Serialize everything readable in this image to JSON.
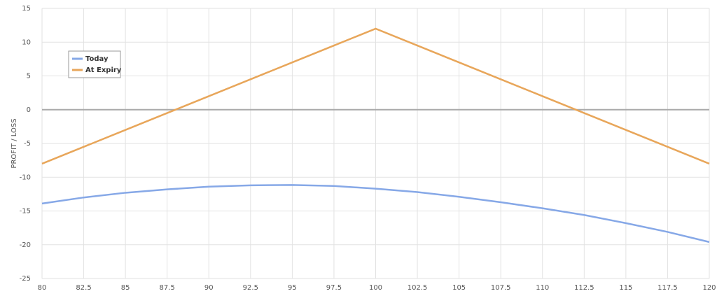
{
  "chart_data": {
    "type": "line",
    "y_label": "PROFIT / LOSS",
    "x": [
      80,
      82.5,
      85,
      87.5,
      90,
      92.5,
      95,
      97.5,
      100,
      102.5,
      105,
      107.5,
      110,
      112.5,
      115,
      117.5,
      120
    ],
    "series": [
      {
        "name": "Today",
        "color": "#86a8e7",
        "values": [
          -13.9,
          -13.0,
          -12.3,
          -11.8,
          -11.4,
          -11.2,
          -11.15,
          -11.3,
          -11.7,
          -12.2,
          -12.9,
          -13.7,
          -14.6,
          -15.6,
          -16.8,
          -18.1,
          -19.6
        ]
      },
      {
        "name": "At Expiry",
        "color": "#e8a65a",
        "values": [
          -8,
          -5.5,
          -3,
          -0.5,
          2,
          4.5,
          7,
          9.5,
          12,
          9.5,
          7,
          4.5,
          2,
          -0.5,
          -3,
          -5.5,
          -8
        ]
      }
    ],
    "xlim": [
      80,
      120
    ],
    "ylim": [
      -25,
      15
    ],
    "xticks": [
      80,
      82.5,
      85,
      87.5,
      90,
      92.5,
      95,
      97.5,
      100,
      102.5,
      105,
      107.5,
      110,
      112.5,
      115,
      117.5,
      120
    ],
    "yticks": [
      -25,
      -20,
      -15,
      -10,
      -5,
      0,
      5,
      10,
      15
    ],
    "grid": true,
    "legend": "upper-left"
  }
}
